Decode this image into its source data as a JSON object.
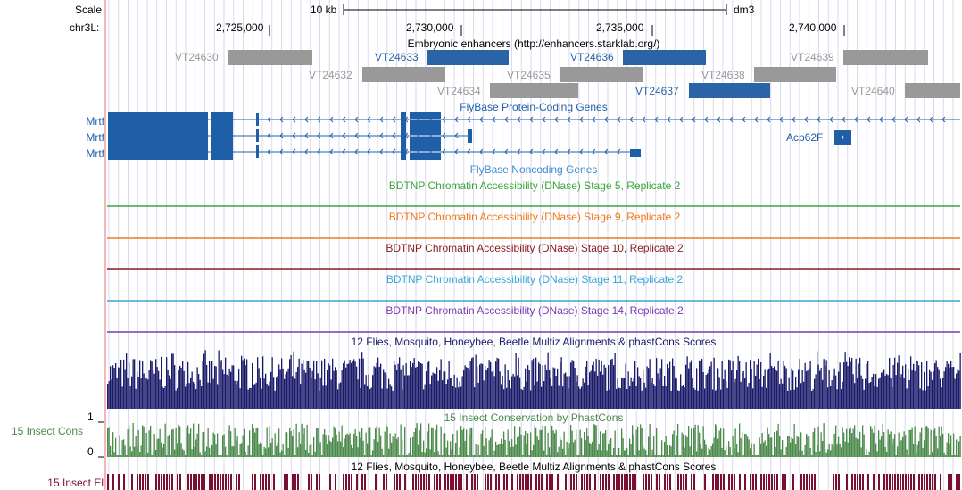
{
  "header": {
    "scale_label": "Scale",
    "scale_bar_label": "10 kb",
    "assembly": "dm3",
    "chrom_label": "chr3L:",
    "positions": [
      "2,725,000",
      "2,730,000",
      "2,735,000",
      "2,740,000"
    ]
  },
  "tracks": {
    "enhancers": {
      "title": "Embryonic enhancers (http://enhancers.starklab.org/)",
      "items": [
        {
          "name": "VT24630",
          "state": "gray"
        },
        {
          "name": "VT24633",
          "state": "blue"
        },
        {
          "name": "VT24636",
          "state": "blue"
        },
        {
          "name": "VT24639",
          "state": "gray"
        },
        {
          "name": "VT24632",
          "state": "gray"
        },
        {
          "name": "VT24635",
          "state": "gray"
        },
        {
          "name": "VT24638",
          "state": "gray"
        },
        {
          "name": "VT24634",
          "state": "gray"
        },
        {
          "name": "VT24637",
          "state": "blue"
        },
        {
          "name": "VT24640",
          "state": "gray"
        }
      ]
    },
    "genes": {
      "title": "FlyBase Protein-Coding Genes",
      "labels": [
        "Mrtf",
        "Mrtf",
        "Mrtf"
      ],
      "right_gene": "Acp62F",
      "noncoding_title": "FlyBase Noncoding Genes"
    },
    "dnase": [
      {
        "title": "BDTNP Chromatin Accessibility (DNase) Stage 5, Replicate 2",
        "color": "#3aa63a"
      },
      {
        "title": "BDTNP Chromatin Accessibility (DNase) Stage 9, Replicate 2",
        "color": "#f07a1a"
      },
      {
        "title": "BDTNP Chromatin Accessibility (DNase) Stage 10, Replicate 2",
        "color": "#8b1a1a"
      },
      {
        "title": "BDTNP Chromatin Accessibility (DNase) Stage 11, Replicate 2",
        "color": "#3aa6d6"
      },
      {
        "title": "BDTNP Chromatin Accessibility (DNase) Stage 14, Replicate 2",
        "color": "#7a3ab0"
      }
    ],
    "multiz": {
      "title": "12 Flies, Mosquito, Honeybee, Beetle Multiz Alignments & phastCons Scores"
    },
    "cons": {
      "title": "15 Insect Conservation by PhastCons",
      "left_label": "15 Insect Cons",
      "ymax": "1",
      "ymin": "0"
    },
    "elements": {
      "title": "12 Flies, Mosquito, Honeybee, Beetle Multiz Alignments & phastCons Scores",
      "left_label": "15 Insect El"
    }
  },
  "colors": {
    "gene_blue": "#1f5fa8",
    "enh_blue": "#2a64a6",
    "enh_gray": "#999999",
    "multiz": "#1a1a6b",
    "cons": "#4a8a4a",
    "elements": "#7a1030"
  }
}
